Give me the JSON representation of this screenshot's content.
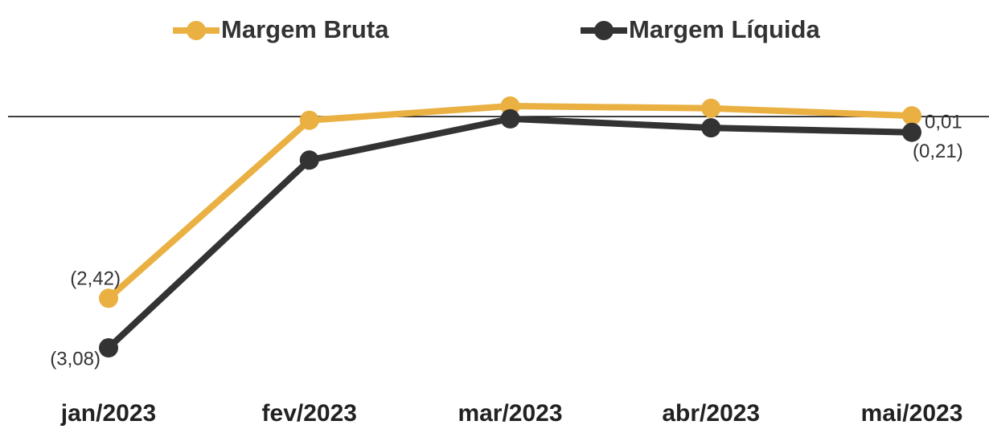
{
  "chart_data": {
    "type": "line",
    "categories": [
      "jan/2023",
      "fev/2023",
      "mar/2023",
      "abr/2023",
      "mai/2023"
    ],
    "series": [
      {
        "name": "Margem Bruta",
        "color": "#EAB042",
        "values": [
          -2.42,
          -0.05,
          0.14,
          0.11,
          0.01
        ],
        "value_labels": [
          "(2,42)",
          null,
          null,
          null,
          "0,01"
        ]
      },
      {
        "name": "Margem Líquida",
        "color": "#333333",
        "values": [
          -3.08,
          -0.58,
          -0.03,
          -0.15,
          -0.21
        ],
        "value_labels": [
          "(3,08)",
          null,
          null,
          null,
          "(0,21)"
        ]
      }
    ]
  }
}
